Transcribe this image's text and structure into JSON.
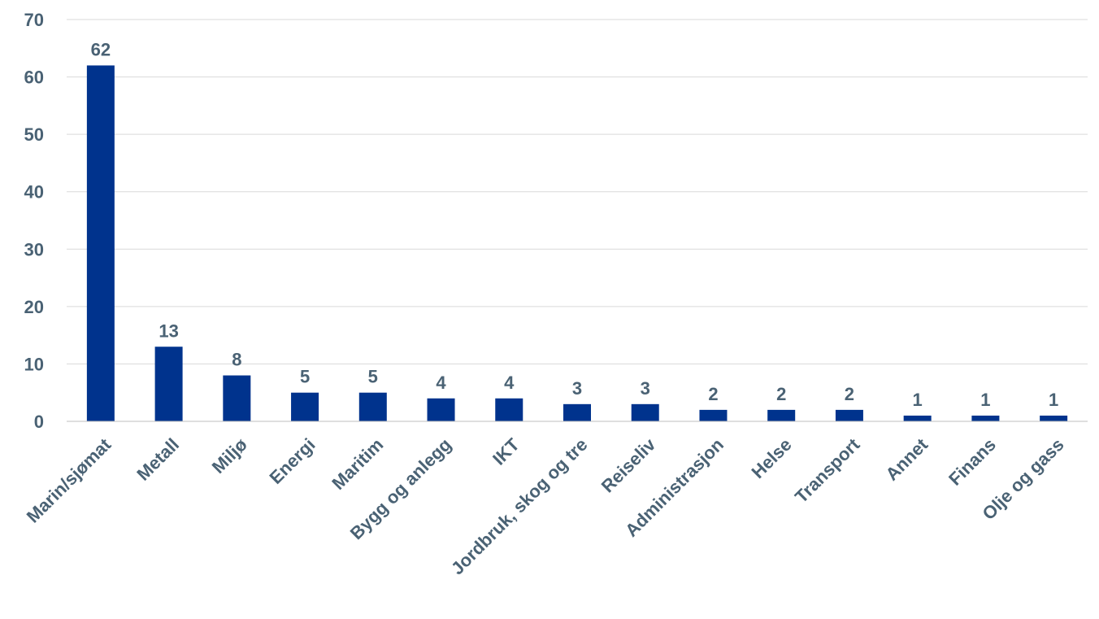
{
  "chart_data": {
    "type": "bar",
    "categories": [
      "Marin/sjømat",
      "Metall",
      "Miljø",
      "Energi",
      "Maritim",
      "Bygg og anlegg",
      "IKT",
      "Jordbruk, skog og tre",
      "Reiseliv",
      "Administrasjon",
      "Helse",
      "Transport",
      "Annet",
      "Finans",
      "Olje og gass"
    ],
    "values": [
      62,
      13,
      8,
      5,
      5,
      4,
      4,
      3,
      3,
      2,
      2,
      2,
      1,
      1,
      1
    ],
    "data_labels": [
      "62",
      "13",
      "8",
      "5",
      "5",
      "4",
      "4",
      "3",
      "3",
      "2",
      "2",
      "2",
      "1",
      "1",
      "1"
    ],
    "title": "",
    "xlabel": "",
    "ylabel": "",
    "ylim": [
      0,
      70
    ],
    "yticks": [
      0,
      10,
      20,
      30,
      40,
      50,
      60,
      70
    ],
    "grid": true,
    "legend": "none",
    "colors": {
      "bar": "#00338d",
      "text": "#4a6274",
      "grid": "#d9d9d9",
      "axis": "#bfbfbf"
    }
  }
}
